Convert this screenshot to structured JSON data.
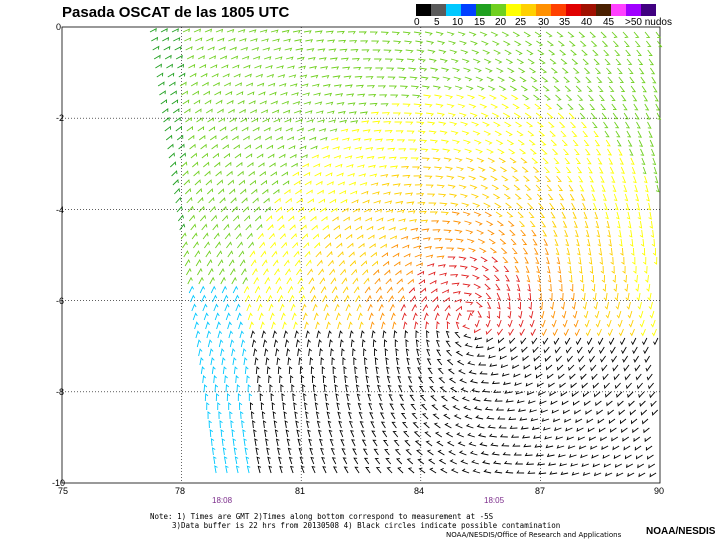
{
  "title": "Pasada OSCAT de las 1805 UTC",
  "legend": {
    "labels": [
      "0",
      "5",
      "10",
      "15",
      "20",
      "25",
      "30",
      "35",
      "40",
      "45",
      ">50 nudos"
    ],
    "colors": [
      "#000000",
      "#5a5a5a",
      "#00c8ff",
      "#0040ff",
      "#20a020",
      "#70d020",
      "#ffff00",
      "#ffd000",
      "#ff9000",
      "#ff4000",
      "#e00000",
      "#a01000",
      "#4a2000",
      "#ff40ff",
      "#a000ff",
      "#400080"
    ]
  },
  "map": {
    "lon_range": [
      75,
      90
    ],
    "lat_range": [
      -10,
      0
    ],
    "x_ticks": [
      "75",
      "78",
      "81",
      "84",
      "87",
      "90"
    ],
    "y_ticks": [
      "0",
      "-2",
      "-4",
      "-6",
      "-8",
      "-10"
    ],
    "grid": "dotted",
    "swath_times": [
      "18:08",
      "18:05"
    ]
  },
  "note_lines": [
    "Note: 1) Times are GMT 2)Times along bottom correspond to measurement at -5S",
    "3)Data buffer is 22 hrs from 20130508 4) Black circles indicate possible contamination"
  ],
  "credit": "NOAA/NESDIS/Office of Research and Applications",
  "brand": "NOAA/NESDIS"
}
